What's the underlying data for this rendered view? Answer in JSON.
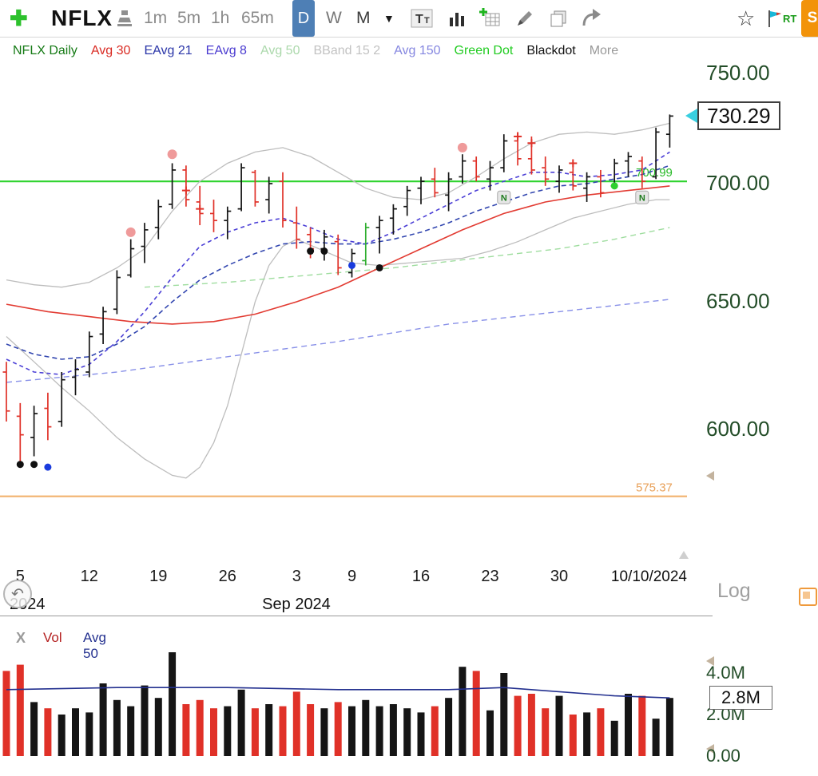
{
  "toolbar": {
    "symbol": "NFLX",
    "timeframes": [
      {
        "label": "1m"
      },
      {
        "label": "5m"
      },
      {
        "label": "1h"
      },
      {
        "label": "65m"
      },
      {
        "label": "D",
        "selected": true
      },
      {
        "label": "W"
      },
      {
        "label": "M"
      }
    ],
    "rt_label": "RT",
    "s_label": "S"
  },
  "legend": {
    "items": [
      {
        "label": "NFLX Daily",
        "color": "#157a15"
      },
      {
        "label": "Avg 30",
        "color": "#d92a22"
      },
      {
        "label": "EAvg 21",
        "color": "#2a35a8"
      },
      {
        "label": "EAvg 8",
        "color": "#4a3bd0"
      },
      {
        "label": "Avg 50",
        "color": "#abd8ab"
      },
      {
        "label": "BBand 15 2",
        "color": "#c2c2c2"
      },
      {
        "label": "Avg 150",
        "color": "#8486e0"
      },
      {
        "label": "Green Dot",
        "color": "#22cc22"
      },
      {
        "label": "Blackdot",
        "color": "#111111"
      },
      {
        "label": "More",
        "color": "#999999"
      }
    ]
  },
  "price_axis": {
    "labels": [
      {
        "price": 750,
        "text": "750.00"
      },
      {
        "price": 700,
        "text": "700.00"
      },
      {
        "price": 650,
        "text": "650.00"
      },
      {
        "price": 600,
        "text": "600.00"
      }
    ],
    "current": {
      "price": 730.29,
      "text": "730.29"
    }
  },
  "volume_axis": {
    "labels": [
      {
        "v": 4.0,
        "text": "4.0M"
      },
      {
        "v": 2.0,
        "text": "2.0M"
      },
      {
        "v": 0,
        "text": "0.00"
      }
    ],
    "current": {
      "v": 2.8,
      "text": "2.8M"
    }
  },
  "xaxis": {
    "ticks": [
      {
        "bar": 1,
        "text": "5"
      },
      {
        "bar": 6,
        "text": "12"
      },
      {
        "bar": 11,
        "text": "19"
      },
      {
        "bar": 16,
        "text": "26"
      },
      {
        "bar": 21,
        "text": "3"
      },
      {
        "bar": 25,
        "text": "9"
      },
      {
        "bar": 30,
        "text": "16"
      },
      {
        "bar": 35,
        "text": "23"
      },
      {
        "bar": 40,
        "text": "30"
      }
    ],
    "end_date": "10/10/2024",
    "year_label": "2024",
    "month_label": "Sep 2024",
    "scale_label": "Log"
  },
  "volume_pane": {
    "close_label": "X",
    "vol_label": "Vol",
    "avg_label": "Avg 50"
  },
  "chart_data": {
    "type": "ohlc-bar",
    "symbol": "NFLX",
    "timeframe": "Daily",
    "scale": "log",
    "price_range_visible": [
      575,
      755
    ],
    "bar_fields": [
      "date",
      "open",
      "high",
      "low",
      "close",
      "color(k=black,r=red,g=green)",
      "volume_M"
    ],
    "bars": [
      [
        "8/2",
        622,
        626,
        603,
        607,
        "r",
        4.1
      ],
      [
        "8/5",
        605,
        610,
        587,
        598,
        "r",
        4.4
      ],
      [
        "8/6",
        597,
        609,
        590,
        606,
        "k",
        2.6
      ],
      [
        "8/7",
        608,
        614,
        596,
        601,
        "r",
        2.3
      ],
      [
        "8/8",
        603,
        622,
        601,
        619,
        "k",
        2.0
      ],
      [
        "8/9",
        620,
        627,
        613,
        623,
        "k",
        2.3
      ],
      [
        "8/12",
        622,
        638,
        620,
        636,
        "k",
        2.1
      ],
      [
        "8/13",
        637,
        648,
        633,
        646,
        "k",
        3.5
      ],
      [
        "8/14",
        647,
        663,
        645,
        660,
        "k",
        2.7
      ],
      [
        "8/15",
        661,
        676,
        660,
        672,
        "k",
        2.4
      ],
      [
        "8/16",
        673,
        683,
        666,
        680,
        "k",
        3.4
      ],
      [
        "8/19",
        681,
        693,
        676,
        690,
        "k",
        2.8
      ],
      [
        "8/20",
        691,
        709,
        689,
        706,
        "k",
        5.0
      ],
      [
        "8/21",
        706,
        708,
        690,
        693,
        "r",
        2.5
      ],
      [
        "8/22",
        692,
        699,
        682,
        687,
        "r",
        2.7
      ],
      [
        "8/23",
        687,
        693,
        679,
        684,
        "r",
        2.3
      ],
      [
        "8/26",
        684,
        690,
        676,
        688,
        "k",
        2.4
      ],
      [
        "8/27",
        689,
        709,
        688,
        707,
        "k",
        3.2
      ],
      [
        "8/28",
        705,
        706,
        690,
        692,
        "r",
        2.3
      ],
      [
        "8/29",
        693,
        703,
        687,
        700,
        "k",
        2.5
      ],
      [
        "8/30",
        701,
        705,
        681,
        684,
        "r",
        2.4
      ],
      [
        "9/3",
        683,
        690,
        672,
        676,
        "r",
        3.1
      ],
      [
        "9/4",
        678,
        681,
        668,
        672,
        "r",
        2.5
      ],
      [
        "9/5",
        672,
        680,
        667,
        677,
        "k",
        2.3
      ],
      [
        "9/6",
        675,
        678,
        661,
        664,
        "r",
        2.6
      ],
      [
        "9/9",
        662,
        672,
        660,
        670,
        "k",
        2.4
      ],
      [
        "9/10",
        667,
        683,
        665,
        681,
        "g",
        2.7
      ],
      [
        "9/11",
        681,
        686,
        670,
        684,
        "k",
        2.4
      ],
      [
        "9/12",
        685,
        691,
        678,
        689,
        "k",
        2.5
      ],
      [
        "9/13",
        690,
        699,
        686,
        697,
        "k",
        2.3
      ],
      [
        "9/16",
        698,
        703,
        691,
        701,
        "k",
        2.1
      ],
      [
        "9/17",
        702,
        707,
        694,
        696,
        "r",
        2.4
      ],
      [
        "9/18",
        695,
        705,
        688,
        702,
        "k",
        2.8
      ],
      [
        "9/19",
        703,
        713,
        700,
        710,
        "k",
        4.3
      ],
      [
        "9/20",
        710,
        712,
        701,
        703,
        "r",
        4.1
      ],
      [
        "9/23",
        702,
        710,
        697,
        707,
        "k",
        2.2
      ],
      [
        "9/24",
        707,
        722,
        705,
        719,
        "k",
        4.0
      ],
      [
        "9/25",
        719,
        723,
        708,
        711,
        "r",
        2.9
      ],
      [
        "9/26",
        711,
        721,
        704,
        706,
        "r",
        3.0
      ],
      [
        "9/27",
        707,
        712,
        699,
        702,
        "r",
        2.3
      ],
      [
        "9/30",
        701,
        708,
        696,
        706,
        "k",
        2.9
      ],
      [
        "10/1",
        705,
        709,
        697,
        699,
        "r",
        2.0
      ],
      [
        "10/2",
        698,
        705,
        692,
        703,
        "k",
        2.1
      ],
      [
        "10/3",
        703,
        706,
        694,
        696,
        "r",
        2.3
      ],
      [
        "10/4",
        699,
        711,
        698,
        709,
        "k",
        1.7
      ],
      [
        "10/7",
        710,
        714,
        703,
        712,
        "k",
        3.0
      ],
      [
        "10/8",
        710,
        712,
        698,
        701,
        "r",
        2.9
      ],
      [
        "10/9",
        703,
        725,
        702,
        723,
        "k",
        1.8
      ],
      [
        "10/10",
        722,
        731,
        716,
        730.29,
        "k",
        2.8
      ]
    ],
    "hlines": [
      {
        "price": 700.99,
        "label": "700.99",
        "color": "#2fd32f",
        "label_color": "#27b927"
      },
      {
        "price": 575.37,
        "label": "575.37",
        "color": "#f2b26e",
        "label_color": "#e8a058"
      }
    ],
    "overlays": [
      {
        "name": "BBand 15 2 upper",
        "color": "#bdbdbd",
        "dash": "",
        "w": 1.3,
        "pts": [
          [
            0,
            659
          ],
          [
            2,
            657
          ],
          [
            4,
            656
          ],
          [
            6,
            658
          ],
          [
            8,
            664
          ],
          [
            10,
            672
          ],
          [
            12,
            688
          ],
          [
            14,
            701
          ],
          [
            16,
            709
          ],
          [
            18,
            714
          ],
          [
            20,
            716
          ],
          [
            22,
            712
          ],
          [
            24,
            705
          ],
          [
            26,
            698
          ],
          [
            28,
            694
          ],
          [
            30,
            693
          ],
          [
            32,
            696
          ],
          [
            34,
            703
          ],
          [
            36,
            711
          ],
          [
            38,
            718
          ],
          [
            40,
            722
          ],
          [
            42,
            723
          ],
          [
            44,
            722
          ],
          [
            46,
            724
          ],
          [
            48,
            727
          ]
        ]
      },
      {
        "name": "BBand 15 2 lower",
        "color": "#bdbdbd",
        "dash": "",
        "w": 1.3,
        "pts": [
          [
            0,
            636
          ],
          [
            2,
            626
          ],
          [
            4,
            616
          ],
          [
            6,
            607
          ],
          [
            8,
            597
          ],
          [
            10,
            589
          ],
          [
            12,
            583
          ],
          [
            13,
            582
          ],
          [
            14,
            586
          ],
          [
            15,
            595
          ],
          [
            16,
            609
          ],
          [
            17,
            629
          ],
          [
            18,
            650
          ],
          [
            19,
            665
          ],
          [
            20,
            673
          ],
          [
            21,
            676
          ],
          [
            23,
            671
          ],
          [
            25,
            666
          ],
          [
            27,
            665
          ],
          [
            29,
            666
          ],
          [
            31,
            667
          ],
          [
            33,
            668
          ],
          [
            35,
            671
          ],
          [
            37,
            675
          ],
          [
            39,
            680
          ],
          [
            41,
            685
          ],
          [
            43,
            688
          ],
          [
            45,
            691
          ],
          [
            47,
            693
          ],
          [
            48,
            693
          ]
        ]
      },
      {
        "name": "Avg 150",
        "color": "#8890e8",
        "dash": "7 5",
        "w": 1.4,
        "pts": [
          [
            0,
            618
          ],
          [
            8,
            622
          ],
          [
            16,
            628
          ],
          [
            24,
            634
          ],
          [
            32,
            641
          ],
          [
            40,
            646
          ],
          [
            48,
            651
          ]
        ]
      },
      {
        "name": "Avg 50",
        "color": "#9fdd9f",
        "dash": "7 5",
        "w": 1.4,
        "pts": [
          [
            10,
            656
          ],
          [
            16,
            658
          ],
          [
            22,
            661
          ],
          [
            28,
            664
          ],
          [
            34,
            668
          ],
          [
            40,
            672
          ],
          [
            44,
            676
          ],
          [
            48,
            681
          ]
        ]
      },
      {
        "name": "Avg 30",
        "color": "#e23b32",
        "dash": "",
        "w": 1.6,
        "pts": [
          [
            0,
            649
          ],
          [
            3,
            646
          ],
          [
            6,
            644
          ],
          [
            9,
            642
          ],
          [
            12,
            641
          ],
          [
            15,
            642
          ],
          [
            18,
            645
          ],
          [
            21,
            650
          ],
          [
            24,
            656
          ],
          [
            27,
            664
          ],
          [
            30,
            672
          ],
          [
            33,
            680
          ],
          [
            36,
            687
          ],
          [
            39,
            692
          ],
          [
            42,
            695
          ],
          [
            45,
            697
          ],
          [
            48,
            699
          ]
        ]
      },
      {
        "name": "EAvg 21",
        "color": "#3347b0",
        "dash": "6 4",
        "w": 1.6,
        "pts": [
          [
            0,
            633
          ],
          [
            2,
            629
          ],
          [
            4,
            627
          ],
          [
            6,
            628
          ],
          [
            8,
            633
          ],
          [
            10,
            640
          ],
          [
            12,
            650
          ],
          [
            14,
            659
          ],
          [
            16,
            665
          ],
          [
            18,
            670
          ],
          [
            20,
            674
          ],
          [
            22,
            675
          ],
          [
            24,
            674
          ],
          [
            26,
            674
          ],
          [
            28,
            676
          ],
          [
            30,
            679
          ],
          [
            32,
            683
          ],
          [
            34,
            688
          ],
          [
            36,
            692
          ],
          [
            38,
            696
          ],
          [
            40,
            699
          ],
          [
            42,
            700
          ],
          [
            44,
            702
          ],
          [
            46,
            704
          ],
          [
            48,
            708
          ]
        ]
      },
      {
        "name": "EAvg 8",
        "color": "#4b3fd6",
        "dash": "5 4",
        "w": 1.6,
        "pts": [
          [
            0,
            627
          ],
          [
            2,
            622
          ],
          [
            4,
            621
          ],
          [
            6,
            625
          ],
          [
            8,
            634
          ],
          [
            10,
            646
          ],
          [
            12,
            660
          ],
          [
            14,
            673
          ],
          [
            16,
            679
          ],
          [
            18,
            683
          ],
          [
            20,
            685
          ],
          [
            22,
            681
          ],
          [
            24,
            676
          ],
          [
            26,
            674
          ],
          [
            28,
            679
          ],
          [
            30,
            685
          ],
          [
            32,
            691
          ],
          [
            34,
            697
          ],
          [
            36,
            701
          ],
          [
            38,
            705
          ],
          [
            40,
            705
          ],
          [
            42,
            703
          ],
          [
            44,
            704
          ],
          [
            46,
            706
          ],
          [
            48,
            714
          ]
        ]
      }
    ],
    "markers": {
      "pink_dots": [
        [
          9,
          679
        ],
        [
          12,
          713
        ],
        [
          33,
          716
        ]
      ],
      "black_dots": [
        [
          1,
          587
        ],
        [
          2,
          587
        ],
        [
          22,
          671
        ],
        [
          23,
          671
        ],
        [
          27,
          664
        ]
      ],
      "blue_dots": [
        [
          3,
          586
        ],
        [
          25,
          665
        ]
      ],
      "green_dots": [
        [
          44,
          699
        ]
      ],
      "n_flags": [
        [
          36,
          694
        ],
        [
          46,
          694
        ]
      ],
      "red_plus": [
        [
          13,
          697
        ],
        [
          14,
          689
        ],
        [
          37,
          721
        ],
        [
          38,
          718
        ],
        [
          41,
          709
        ]
      ]
    },
    "volume_avg50_M": [
      [
        0,
        3.2
      ],
      [
        8,
        3.3
      ],
      [
        16,
        3.3
      ],
      [
        24,
        3.2
      ],
      [
        32,
        3.2
      ],
      [
        36,
        3.3
      ],
      [
        40,
        3.1
      ],
      [
        44,
        2.9
      ],
      [
        48,
        2.8
      ]
    ],
    "volume_ylim_M": [
      0,
      4.0
    ]
  }
}
